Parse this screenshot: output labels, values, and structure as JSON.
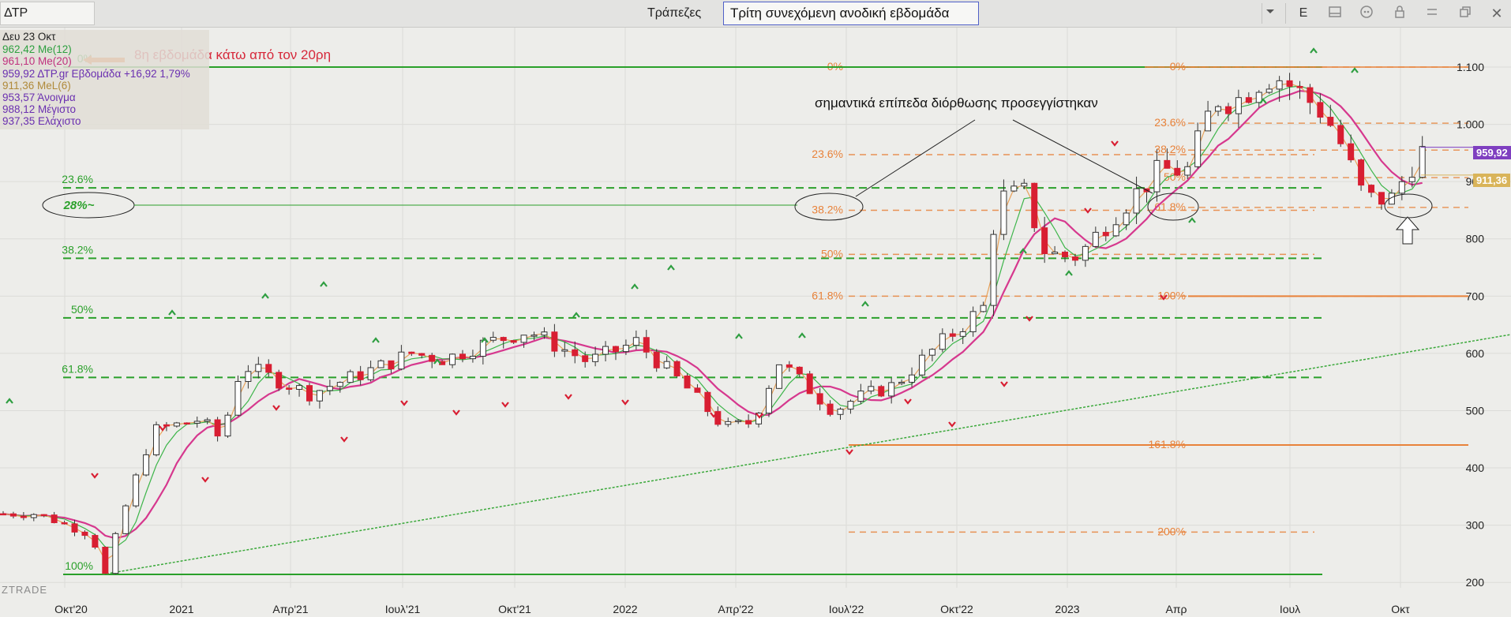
{
  "toolbar": {
    "symbol": "ΔΤΡ",
    "category": "Τράπεζες",
    "title": "Τρίτη συνεχόμενη ανοδική εβδομάδα",
    "period_button": "E"
  },
  "legend": {
    "date": "Δευ 23 Οκτ",
    "ma12": "962,42 Me(12)",
    "ma20": "961,10 Me(20)",
    "close": "959,92 ΔΤΡ.gr Εβδομάδα +16,92 1,79%",
    "ma6": "911,36 MeL(6)",
    "open": "953,57 Άνοιγμα",
    "high": "988,12 Μέγιστο",
    "low": "937,35 Ελάχιστο"
  },
  "annotations": {
    "below_ma": "8η εβδομάδα κάτω από τον 20ρη",
    "levels_note": "σημαντικά επίπεδα διόρθωσης προσεγγίστηκαν",
    "pct28": "28%~",
    "watermark": "ZTRADE"
  },
  "price_tags": {
    "close": "959,92",
    "ma6": "911,36"
  },
  "colors": {
    "bull": "#ffffff",
    "bear": "#d81e32",
    "ma12": "#3db54a",
    "ma20": "#d6388e",
    "ma6": "#e8a25a",
    "fib_green": "#2aa02a",
    "fib_orange": "#e8823a",
    "up_marker": "#2e9e40",
    "down_marker": "#d81e32",
    "price_close": "#7f3fc0",
    "price_ma6": "#d9b45a"
  },
  "chart_data": {
    "type": "candlestick",
    "y_axis_ticks": [
      "1.100",
      "1.000",
      "900",
      "800",
      "700",
      "600",
      "500",
      "400",
      "300",
      "200"
    ],
    "x_axis_ticks": [
      "Οκτ'20",
      "2021",
      "Απρ'21",
      "Ιουλ'21",
      "Οκτ'21",
      "2022",
      "Απρ'22",
      "Ιουλ'22",
      "Οκτ'22",
      "2023",
      "Απρ",
      "Ιουλ",
      "Οκτ"
    ],
    "ylim": [
      190,
      1120
    ],
    "fib_sets": [
      {
        "name": "long_term",
        "levels": [
          {
            "label": "0%",
            "price": 1100
          },
          {
            "label": "23.6%",
            "price": 889
          },
          {
            "label": "38.2%",
            "price": 766
          },
          {
            "label": "50%",
            "price": 662
          },
          {
            "label": "61.8%",
            "price": 558
          },
          {
            "label": "100%",
            "price": 214
          }
        ]
      },
      {
        "name": "mid_term",
        "levels": [
          {
            "label": "0%",
            "price": 1100
          },
          {
            "label": "23.6%",
            "price": 947
          },
          {
            "label": "38.2%",
            "price": 850
          },
          {
            "label": "50%",
            "price": 773
          },
          {
            "label": "61.8%",
            "price": 700
          },
          {
            "label": "161.8%",
            "price": 440
          },
          {
            "label": "200%",
            "price": 288
          }
        ]
      },
      {
        "name": "short_term",
        "levels": [
          {
            "label": "0%",
            "price": 1100
          },
          {
            "label": "23.6%",
            "price": 1002
          },
          {
            "label": "38.2%",
            "price": 955
          },
          {
            "label": "50%",
            "price": 907
          },
          {
            "label": "61.8%",
            "price": 855
          },
          {
            "label": "100%",
            "price": 700
          }
        ]
      }
    ],
    "latest_week": {
      "open": 953.57,
      "high": 988.12,
      "low": 937.35,
      "close": 959.92
    }
  }
}
